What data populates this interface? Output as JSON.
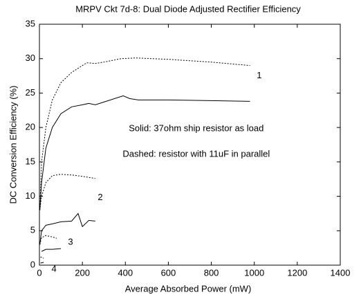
{
  "chart_data": {
    "type": "line",
    "title": "MRPV Ckt 7d-8: Dual Diode Adjusted Rectifier Efficiency",
    "x_label": "Average Absorbed Power (mW)",
    "y_label": "DC Conversion Efficiency (%)",
    "xlim": [
      0,
      1400
    ],
    "xticks": [
      0,
      200,
      400,
      600,
      800,
      1000,
      1200,
      1400
    ],
    "ylim": [
      0,
      35
    ],
    "yticks": [
      0,
      5,
      10,
      15,
      20,
      25,
      30,
      35
    ],
    "grid": false,
    "series": [
      {
        "style": "dashed",
        "color": "#000000",
        "x": [
          2,
          10,
          30,
          60,
          100,
          150,
          200,
          220,
          260,
          300,
          380,
          450,
          600,
          800,
          980
        ],
        "values": [
          8,
          15,
          20,
          24,
          26.5,
          28,
          29,
          29.4,
          29.3,
          29.5,
          30,
          30.1,
          29.9,
          29.5,
          29
        ]
      },
      {
        "style": "solid",
        "color": "#000000",
        "x": [
          2,
          10,
          30,
          60,
          100,
          150,
          200,
          230,
          260,
          300,
          390,
          420,
          460,
          600,
          800,
          980
        ],
        "values": [
          8,
          12,
          17,
          20,
          22,
          23,
          23.3,
          23.5,
          23.3,
          23.7,
          24.6,
          24.2,
          24,
          24,
          23.9,
          23.8
        ]
      },
      {
        "style": "dashed",
        "color": "#000000",
        "x": [
          2,
          10,
          30,
          60,
          100,
          150,
          200,
          260
        ],
        "values": [
          8,
          10,
          12,
          13,
          13.2,
          13.1,
          12.9,
          12.6
        ]
      },
      {
        "style": "solid",
        "color": "#000000",
        "x": [
          2,
          10,
          30,
          60,
          100,
          150,
          180,
          200,
          230,
          260
        ],
        "values": [
          3,
          5,
          5.8,
          6,
          6.3,
          6.4,
          7.5,
          5.6,
          6.5,
          6.4
        ]
      },
      {
        "style": "dashed",
        "color": "#000000",
        "x": [
          2,
          10,
          30,
          60,
          80
        ],
        "values": [
          3,
          4,
          4.3,
          4.1,
          3.9
        ]
      },
      {
        "style": "solid",
        "color": "#000000",
        "x": [
          10,
          30,
          60,
          100
        ],
        "values": [
          2,
          2.3,
          2.3,
          2.4
        ]
      },
      {
        "style": "dashed",
        "color": "#000000",
        "x": [
          5,
          20
        ],
        "values": [
          1.2,
          1.0
        ]
      },
      {
        "style": "solid",
        "color": "#000000",
        "x": [
          5,
          20
        ],
        "values": [
          0.3,
          0.4
        ]
      }
    ],
    "annotations": [
      {
        "text": "1",
        "x": 1023,
        "y": 27.5
      },
      {
        "text": "2",
        "x": 283,
        "y": 9.8
      },
      {
        "text": "3",
        "x": 145,
        "y": 3.3
      },
      {
        "text": "4",
        "x": 68,
        "y": -0.6
      },
      {
        "text": "Solid: 37ohm ship resistor as load",
        "x": 730,
        "y": 19.8
      },
      {
        "text": "Dashed: resistor with 11uF in parallel",
        "x": 730,
        "y": 16.1
      }
    ]
  }
}
